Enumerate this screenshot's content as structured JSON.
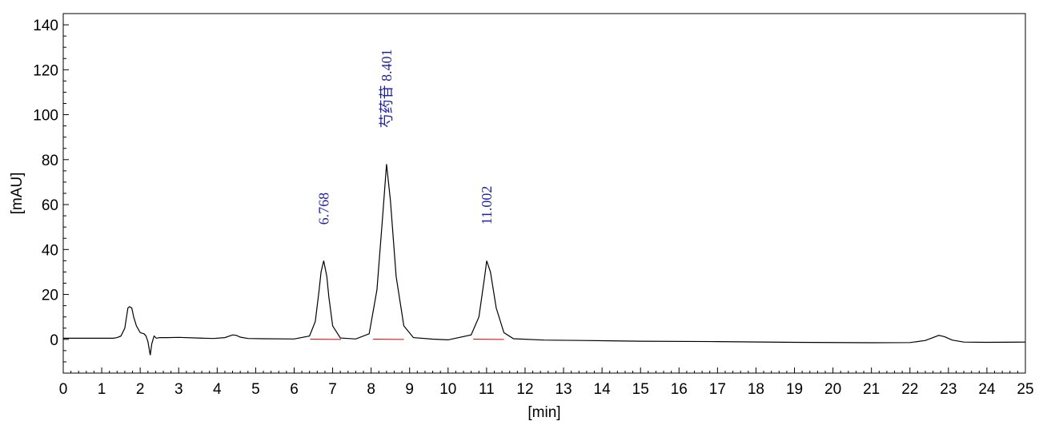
{
  "chart_data": {
    "type": "line",
    "xlabel": "[min]",
    "ylabel": "[mAU]",
    "xlim": [
      0,
      25
    ],
    "ylim": [
      -15,
      145
    ],
    "x_ticks": [
      "0",
      "1",
      "2",
      "3",
      "4",
      "5",
      "6",
      "7",
      "8",
      "9",
      "10",
      "11",
      "12",
      "13",
      "14",
      "15",
      "16",
      "17",
      "18",
      "19",
      "20",
      "21",
      "22",
      "23",
      "24",
      "25"
    ],
    "y_ticks": [
      "0",
      "20",
      "40",
      "60",
      "80",
      "100",
      "120",
      "140"
    ],
    "grid": false,
    "colors": {
      "trace": "#000000",
      "baseline": "#e00000",
      "labels": "#1f1fa8"
    },
    "peaks": [
      {
        "rt": 6.768,
        "height": 35,
        "label": "6.768"
      },
      {
        "rt": 8.401,
        "height": 78,
        "label": "芍药苷 8.401"
      },
      {
        "rt": 11.002,
        "height": 35,
        "label": "11.002"
      }
    ],
    "series": [
      {
        "x": [
          0,
          1.3,
          1.4,
          1.5,
          1.6,
          1.68,
          1.72,
          1.78,
          1.83,
          1.9,
          2.0,
          2.1,
          2.15,
          2.2,
          2.26,
          2.3,
          2.36,
          2.42,
          2.5,
          2.7,
          3.0,
          3.5,
          3.9,
          4.2,
          4.4,
          4.5,
          4.6,
          4.8,
          5.2,
          6.0,
          6.4,
          6.55,
          6.65,
          6.7,
          6.768,
          6.85,
          6.9,
          7.0,
          7.2,
          7.6,
          7.95,
          8.15,
          8.3,
          8.401,
          8.5,
          8.65,
          8.85,
          9.1,
          9.6,
          10.0,
          10.6,
          10.8,
          10.95,
          11.002,
          11.1,
          11.25,
          11.45,
          11.7,
          12.5,
          13.5,
          15.0,
          17.0,
          19.0,
          21.0,
          22.0,
          22.4,
          22.6,
          22.75,
          22.9,
          23.1,
          23.4,
          24.0,
          25.0
        ],
        "y": [
          0.5,
          0.5,
          0.8,
          1.5,
          5,
          14,
          14.5,
          14,
          10,
          6,
          3,
          2.5,
          1.5,
          -1,
          -7,
          -2,
          1.5,
          0.5,
          0.8,
          0.8,
          0.9,
          0.6,
          0.4,
          0.8,
          2.0,
          1.8,
          1.0,
          0.4,
          0.3,
          0.2,
          1.5,
          8,
          22,
          30,
          35,
          28,
          19,
          6,
          0.6,
          0.2,
          2.5,
          22,
          55,
          78,
          62,
          28,
          6,
          0.8,
          0.1,
          -0.2,
          2,
          10,
          28,
          35,
          30,
          14,
          3,
          0.3,
          -0.3,
          -0.5,
          -0.8,
          -1.0,
          -1.3,
          -1.5,
          -1.4,
          -0.5,
          0.8,
          1.8,
          1.2,
          -0.3,
          -1.2,
          -1.3,
          -1.2
        ]
      }
    ]
  }
}
